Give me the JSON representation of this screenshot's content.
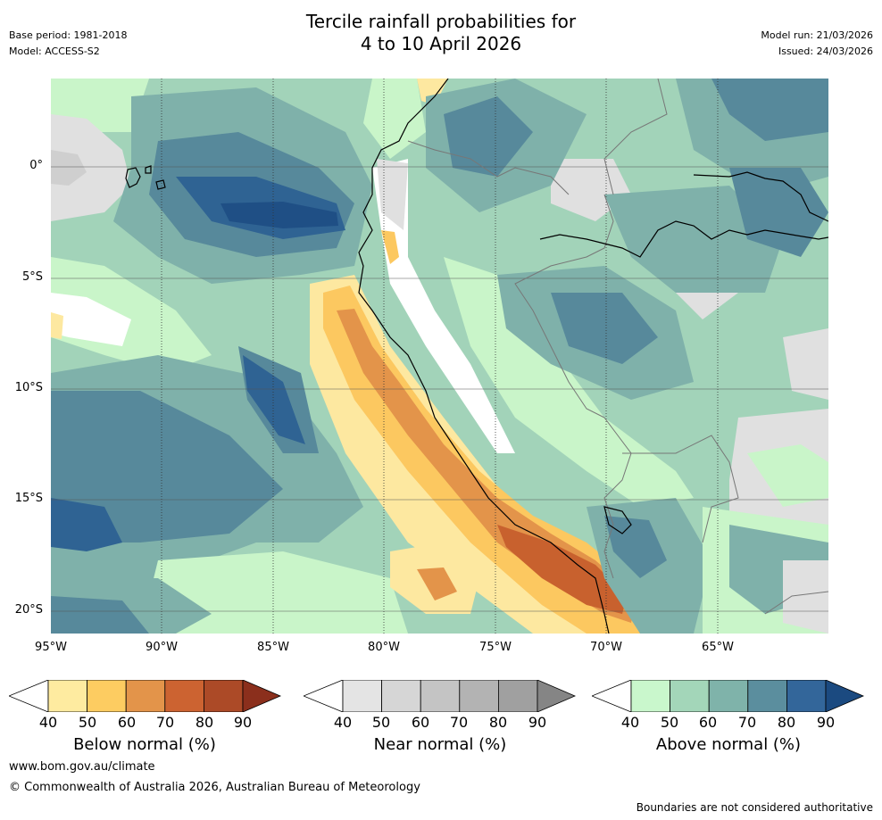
{
  "header": {
    "title_line1": "Tercile rainfall probabilities for",
    "title_line2": "4 to 10 April 2026",
    "base_period": "Base period: 1981-2018",
    "model": "Model: ACCESS-S2",
    "model_run": "Model run: 21/03/2026",
    "issued": "Issued: 24/03/2026"
  },
  "map": {
    "lat_labels": [
      "0°",
      "5°S",
      "10°S",
      "15°S",
      "20°S"
    ],
    "lon_labels": [
      "95°W",
      "90°W",
      "85°W",
      "80°W",
      "75°W",
      "70°W",
      "65°W"
    ],
    "colors": {
      "ocean_base": "#ffffff",
      "above_50": "#c9f5c9",
      "above_60": "#a2d3b9",
      "above_70": "#7fb1aa",
      "above_80": "#57899b",
      "above_90": "#2f6393",
      "below_50": "#fde8a0",
      "below_60": "#fcc860",
      "below_70": "#e3944a",
      "below_80": "#c8612e",
      "near_50": "#e0e0e0",
      "near_60": "#cfcfcf"
    }
  },
  "colorbars": [
    {
      "title": "Below normal (%)",
      "ticks": [
        "40",
        "50",
        "60",
        "70",
        "80",
        "90"
      ],
      "colors": [
        "#ffffff",
        "#feeba0",
        "#fdcc61",
        "#e3944a",
        "#cc6331",
        "#ac4a27",
        "#8b2f1c"
      ]
    },
    {
      "title": "Near normal (%)",
      "ticks": [
        "40",
        "50",
        "60",
        "70",
        "80",
        "90"
      ],
      "colors": [
        "#ffffff",
        "#e4e4e4",
        "#d6d6d6",
        "#c4c4c4",
        "#b3b3b3",
        "#a0a0a0",
        "#858585"
      ]
    },
    {
      "title": "Above normal (%)",
      "ticks": [
        "40",
        "50",
        "60",
        "70",
        "80",
        "90"
      ],
      "colors": [
        "#ffffff",
        "#c9f7cc",
        "#a3d6b9",
        "#7fb3aa",
        "#5b8e9e",
        "#33669a",
        "#1b4a80"
      ]
    }
  ],
  "footer": {
    "url": "www.bom.gov.au/climate",
    "copyright": "© Commonwealth of Australia 2026, Australian Bureau of Meteorology",
    "disclaimer": "Boundaries are not considered authoritative"
  }
}
